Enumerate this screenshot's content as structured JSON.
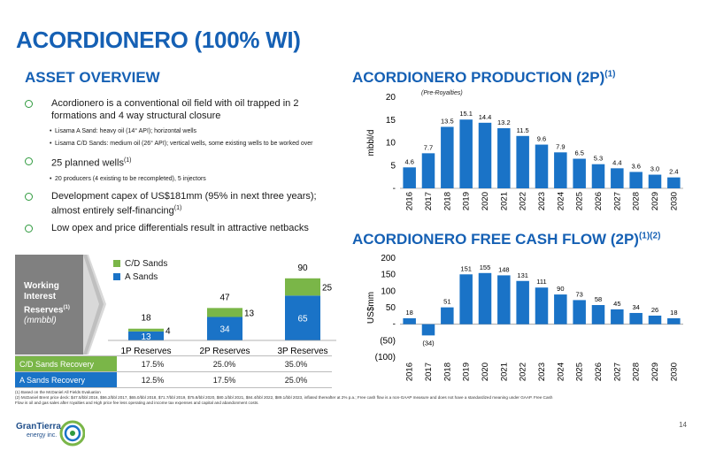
{
  "page": {
    "title": "ACORDIONERO (100% WI)",
    "page_number": "14",
    "logo_name": "GranTierra",
    "logo_sub": "energy inc."
  },
  "overview": {
    "heading": "ASSET OVERVIEW",
    "bullets": [
      {
        "text": "Acordionero is a conventional oil field with oil trapped in 2 formations and 4 way structural closure",
        "subs": [
          "Lisama A Sand: heavy oil (14° API); horizontal wells",
          "Lisama C/D Sands: medium oil (26° API); vertical wells, some existing wells to be worked over"
        ]
      },
      {
        "text": "25 planned wells",
        "sup": "(1)",
        "subs": [
          "20 producers (4 existing to be recompleted), 5 injectors"
        ]
      },
      {
        "text": "Development capex of US$181mm (95% in next three years); almost entirely self-financing",
        "sup": "(1)",
        "subs": []
      },
      {
        "text": "Low opex and price differentials result in attractive netbacks",
        "subs": []
      }
    ]
  },
  "reserves": {
    "box_line1": "Working",
    "box_line2": "Interest",
    "box_line3": "Reserves",
    "box_sup": "(1)",
    "box_unit": "(mmbbl)",
    "legend": {
      "cd": "C/D Sands",
      "a": "A Sands"
    },
    "colors": {
      "cd": "#7ab648",
      "a": "#1a73c7"
    },
    "recovery_table": {
      "rows": [
        {
          "label": "C/D Sands Recovery",
          "values": [
            "17.5%",
            "25.0%",
            "35.0%"
          ]
        },
        {
          "label": "A Sands Recovery",
          "values": [
            "12.5%",
            "17.5%",
            "25.0%"
          ]
        }
      ]
    }
  },
  "footnotes": [
    "(1) Based on the McDaniel All Fields Evaluation",
    "(2) McDaniel Brent price deck: $47.5/bbl 2016, $56.2/bbl 2017, $65.0/bbl 2018, $71.7/bbl 2019, $75.8/bbl 2020, $80.1/bbl 2021, $84.4/bbl 2022, $89.1/bbl 2023, inflated thereafter at 2% p.a.; Free cash flow is a non-GAAP measure and does not have a standardized meaning under GAAP. Free Cash Flow is oil and gas sales after royalties and High price fee less operating and income tax expenses and capital and abandonment costs."
  ],
  "chart_data": [
    {
      "type": "bar",
      "title": "ACORDIONERO PRODUCTION (2P)",
      "title_sup": "(1)",
      "note": "(Pre-Royalties)",
      "ylabel": "mbbl/d",
      "xlabel": "",
      "categories": [
        "2016",
        "2017",
        "2018",
        "2019",
        "2020",
        "2021",
        "2022",
        "2023",
        "2024",
        "2025",
        "2026",
        "2027",
        "2028",
        "2029",
        "2030"
      ],
      "values": [
        4.6,
        7.7,
        13.5,
        15.1,
        14.4,
        13.2,
        11.5,
        9.6,
        7.9,
        6.5,
        5.3,
        4.4,
        3.6,
        3.0,
        2.4
      ],
      "labels": [
        "4.6",
        "7.7",
        "13.5",
        "15.1",
        "14.4",
        "13.2",
        "11.5",
        "9.6",
        "7.9",
        "6.5",
        "5.3",
        "4.4",
        "3.6",
        "3.0",
        "2.4"
      ],
      "ylim": [
        0,
        20
      ],
      "yticks": [
        "-",
        "5",
        "10",
        "15",
        "20"
      ],
      "color": "#1a73c7"
    },
    {
      "type": "bar",
      "title": "ACORDIONERO FREE CASH FLOW (2P)",
      "title_sup": "(1)(2)",
      "ylabel": "US$mm",
      "xlabel": "",
      "categories": [
        "2016",
        "2017",
        "2018",
        "2019",
        "2020",
        "2021",
        "2022",
        "2023",
        "2024",
        "2025",
        "2026",
        "2027",
        "2028",
        "2029",
        "2030"
      ],
      "values": [
        18,
        -34,
        51,
        151,
        155,
        148,
        131,
        111,
        90,
        73,
        58,
        45,
        34,
        26,
        18
      ],
      "labels": [
        "18",
        "(34)",
        "51",
        "151",
        "155",
        "148",
        "131",
        "111",
        "90",
        "73",
        "58",
        "45",
        "34",
        "26",
        "18"
      ],
      "ylim": [
        -100,
        200
      ],
      "yticks": [
        "(100)",
        "(50)",
        "-",
        "50",
        "100",
        "150",
        "200"
      ],
      "color": "#1a73c7"
    },
    {
      "type": "bar",
      "title": "",
      "stacked": true,
      "categories": [
        "1P Reserves",
        "2P Reserves",
        "3P Reserves"
      ],
      "series": [
        {
          "name": "A Sands",
          "values": [
            13,
            34,
            65
          ]
        },
        {
          "name": "C/D Sands",
          "values": [
            4,
            13,
            25
          ]
        }
      ],
      "totals": [
        18,
        47,
        90
      ],
      "ylim": [
        0,
        100
      ]
    }
  ]
}
